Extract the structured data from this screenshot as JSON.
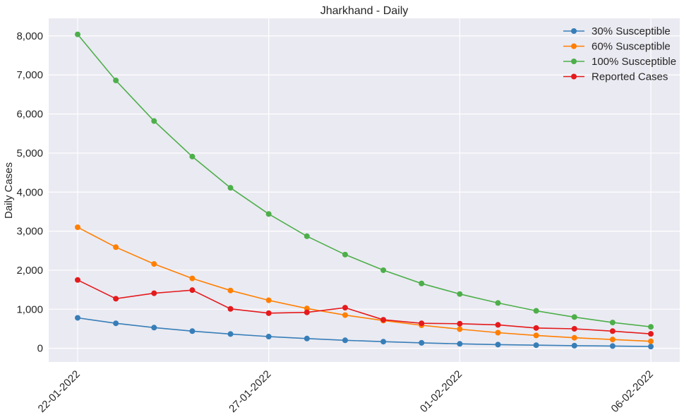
{
  "chart_data": {
    "type": "line",
    "title": "Jharkhand - Daily",
    "xlabel": "",
    "ylabel": "Daily Cases",
    "x": [
      "22-01-2022",
      "23-01-2022",
      "24-01-2022",
      "25-01-2022",
      "26-01-2022",
      "27-01-2022",
      "28-01-2022",
      "29-01-2022",
      "30-01-2022",
      "31-01-2022",
      "01-02-2022",
      "02-02-2022",
      "03-02-2022",
      "04-02-2022",
      "05-02-2022",
      "06-02-2022"
    ],
    "x_ticks": [
      "22-01-2022",
      "27-01-2022",
      "01-02-2022",
      "06-02-2022"
    ],
    "ylim": [
      -350,
      8450
    ],
    "y_ticks": [
      0,
      1000,
      2000,
      3000,
      4000,
      5000,
      6000,
      7000,
      8000
    ],
    "y_tick_labels": [
      "0",
      "1,000",
      "2,000",
      "3,000",
      "4,000",
      "5,000",
      "6,000",
      "7,000",
      "8,000"
    ],
    "grid": true,
    "legend_position": "top-right",
    "series": [
      {
        "name": "30% Susceptible",
        "color": "#377eb8",
        "values": [
          780,
          640,
          530,
          440,
          365,
          300,
          250,
          205,
          170,
          140,
          115,
          95,
          80,
          68,
          58,
          45
        ]
      },
      {
        "name": "60% Susceptible",
        "color": "#ff7f00",
        "values": [
          3100,
          2590,
          2160,
          1790,
          1480,
          1230,
          1020,
          850,
          710,
          590,
          490,
          400,
          330,
          270,
          225,
          180
        ]
      },
      {
        "name": "100% Susceptible",
        "color": "#4daf4a",
        "values": [
          8040,
          6860,
          5820,
          4910,
          4110,
          3440,
          2870,
          2400,
          2000,
          1660,
          1390,
          1160,
          960,
          800,
          660,
          550
        ]
      },
      {
        "name": "Reported Cases",
        "color": "#e41a1c",
        "values": [
          1750,
          1270,
          1410,
          1490,
          1010,
          900,
          920,
          1040,
          730,
          640,
          630,
          600,
          520,
          500,
          440,
          370
        ]
      }
    ]
  }
}
